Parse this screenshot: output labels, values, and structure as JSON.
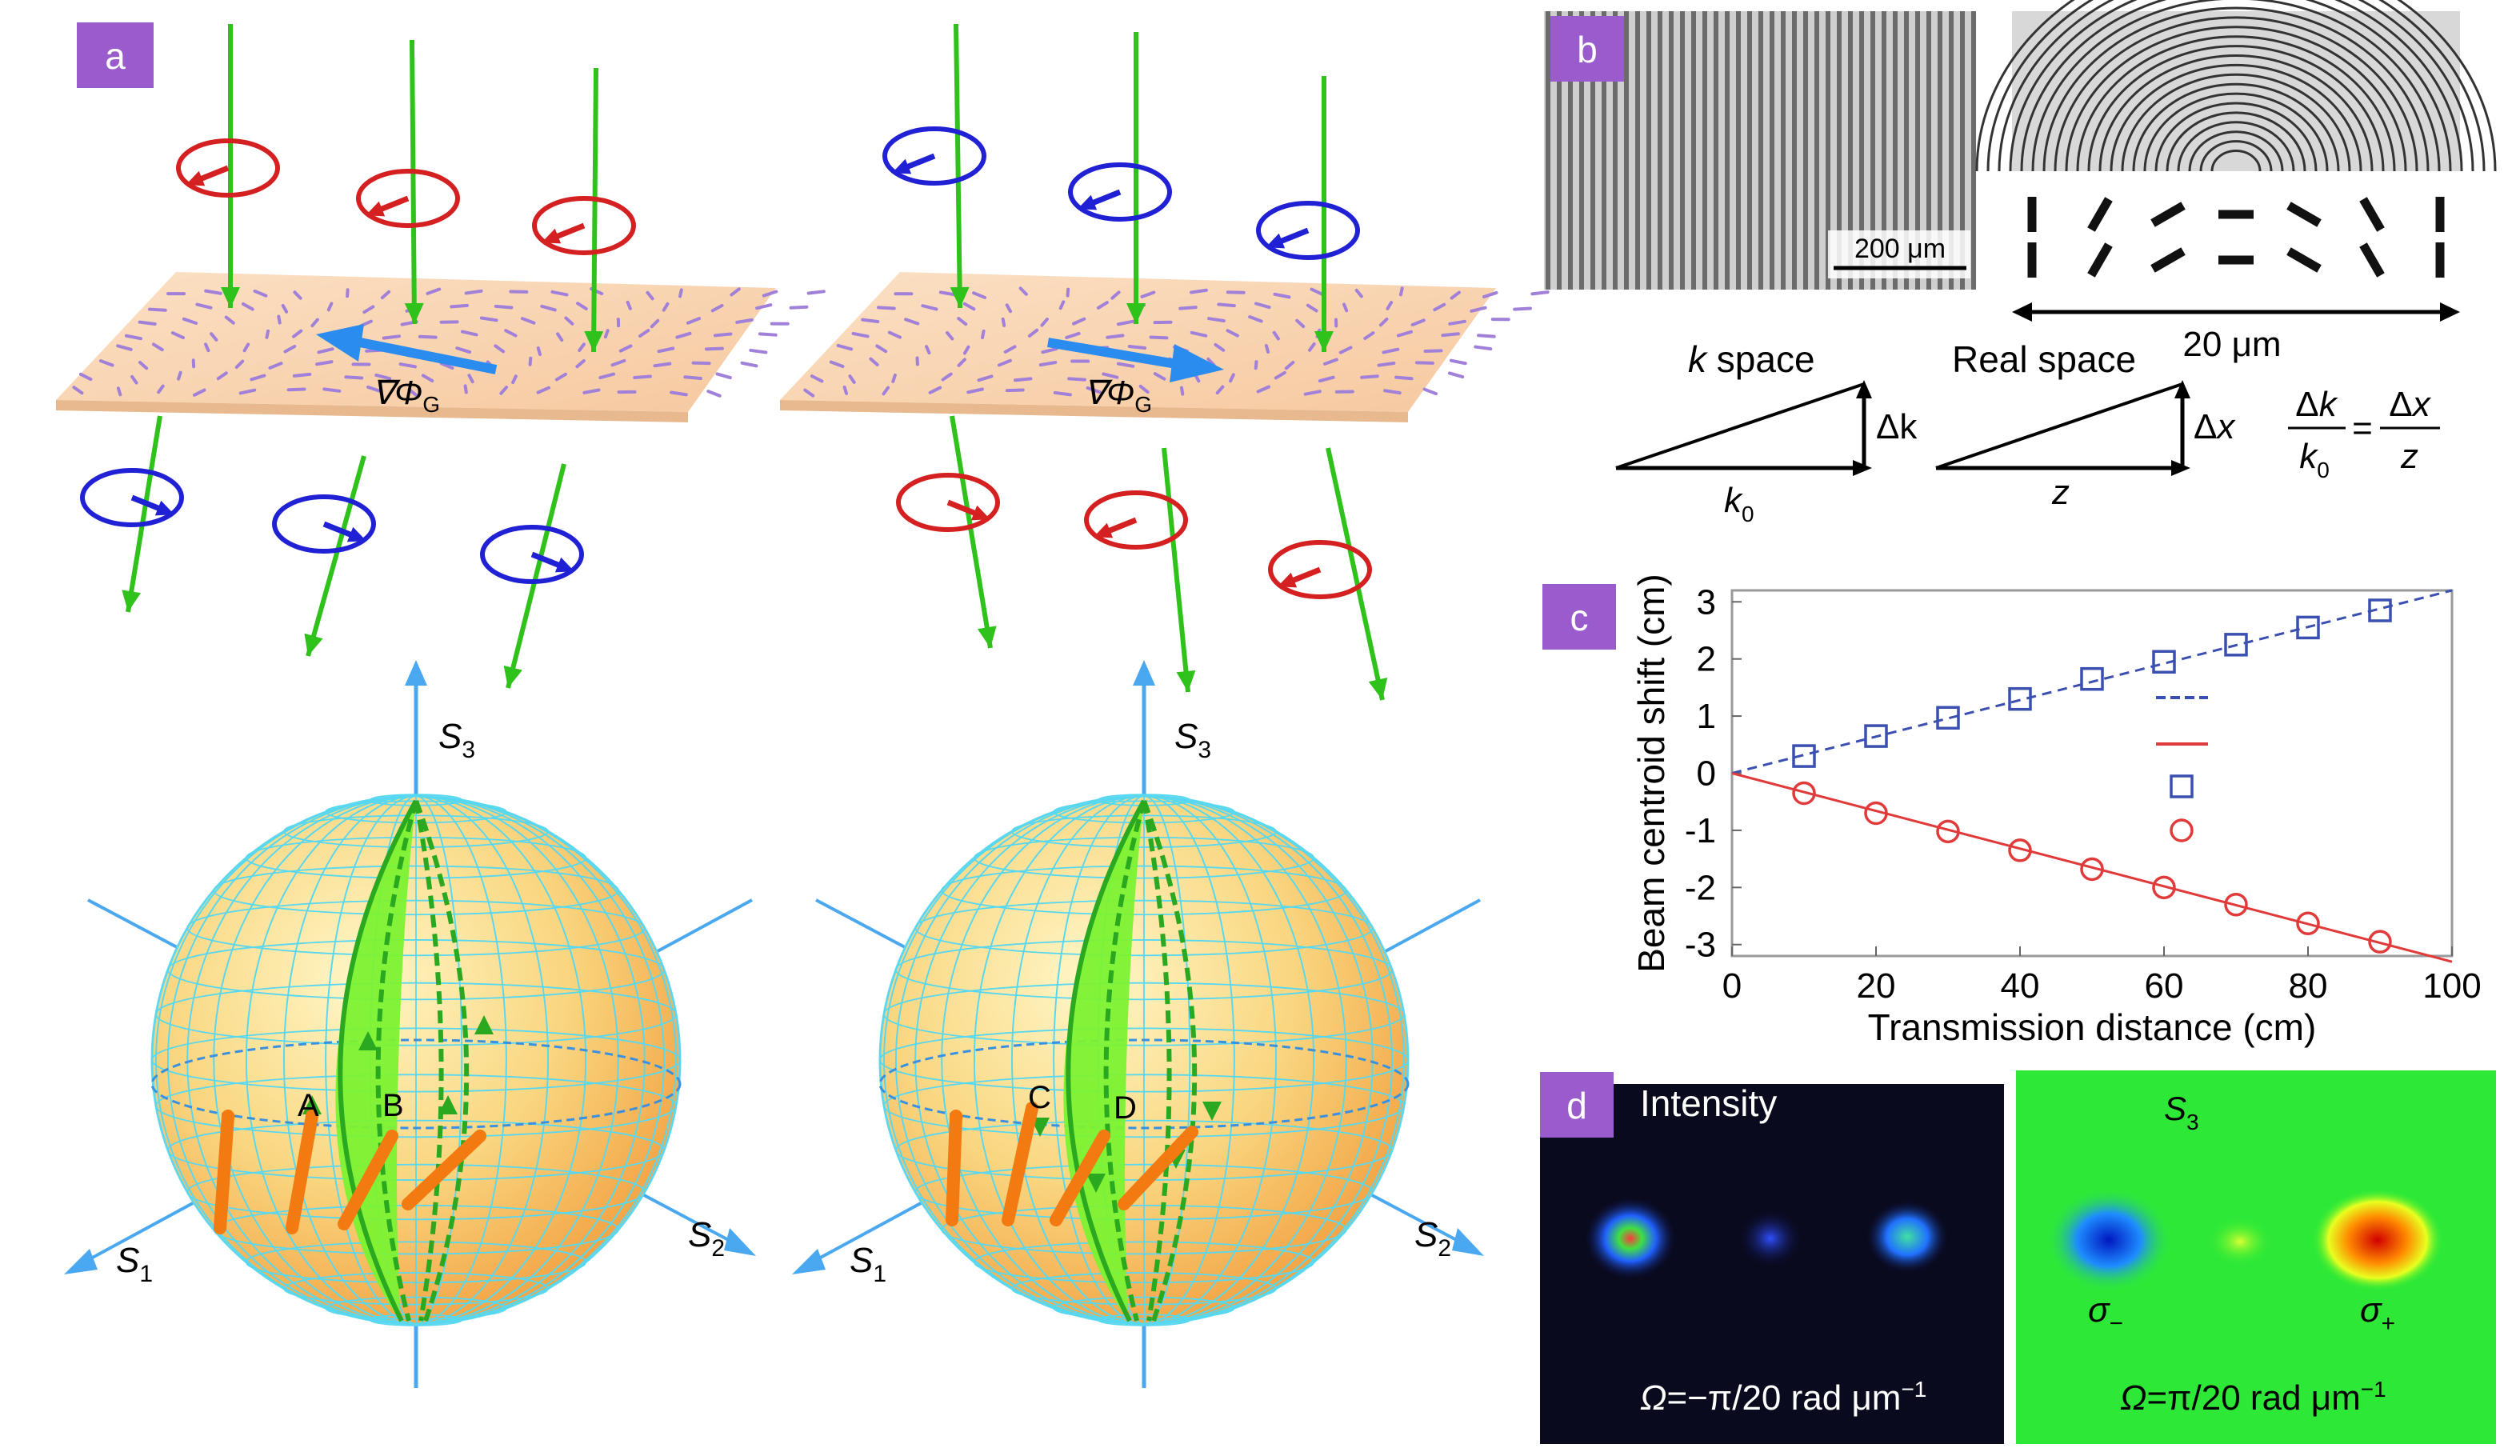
{
  "panels": {
    "a": "a",
    "b": "b",
    "c": "c",
    "d": "d"
  },
  "panel_a": {
    "grad_label": "∇Φ",
    "grad_sub": "G",
    "axes": {
      "s3": "S",
      "s3_sub": "3",
      "s1": "S",
      "s1_sub": "1",
      "s2": "S",
      "s2_sub": "2"
    },
    "points_left": [
      "A",
      "B"
    ],
    "points_right": [
      "C",
      "D"
    ]
  },
  "panel_b": {
    "scale_bar_left": "200 μm",
    "scale_bar_right": "20 μm",
    "k_space_title": "k space",
    "real_space_title": "Real space",
    "k_dk": "Δk",
    "k_k0": "k",
    "k_k0_sub": "0",
    "real_dx": "Δx",
    "real_z": "z",
    "eq_num_left": "Δk",
    "eq_den_left": "k",
    "eq_den_left_sub": "0",
    "eq_equals": "=",
    "eq_num_right": "Δx",
    "eq_den_right": "z"
  },
  "chart_data": {
    "type": "scatter",
    "xlabel": "Transmission distance (cm)",
    "ylabel": "Beam centroid shift (cm)",
    "xlim": [
      0,
      100
    ],
    "ylim": [
      -3.2,
      3.2
    ],
    "xticks": [
      0,
      20,
      40,
      60,
      80,
      100
    ],
    "yticks": [
      -3,
      -2,
      -1,
      0,
      1,
      2,
      3
    ],
    "series": [
      {
        "marker": "square",
        "color": "#3a4fb0",
        "line": "dashed",
        "x": [
          10,
          20,
          30,
          40,
          50,
          60,
          70,
          80,
          90
        ],
        "values": [
          0.3,
          0.65,
          0.97,
          1.3,
          1.65,
          1.95,
          2.25,
          2.55,
          2.85
        ],
        "fit": [
          [
            0,
            0
          ],
          [
            100,
            3.2
          ]
        ]
      },
      {
        "marker": "circle",
        "color": "#e03a3a",
        "line": "solid",
        "x": [
          10,
          20,
          30,
          40,
          50,
          60,
          70,
          80,
          90
        ],
        "values": [
          -0.35,
          -0.7,
          -1.02,
          -1.35,
          -1.68,
          -2.0,
          -2.3,
          -2.63,
          -2.95
        ],
        "fit": [
          [
            0,
            0
          ],
          [
            100,
            -3.3
          ]
        ]
      }
    ]
  },
  "panel_d": {
    "left_title": "Intensity",
    "left_caption": "Ω=−π/20 rad μm⁻¹",
    "right_title": "S",
    "right_title_sub": "3",
    "sigma_minus": "σ",
    "sigma_minus_sub": "−",
    "sigma_plus": "σ",
    "sigma_plus_sub": "+",
    "right_caption": "Ω=π/20 rad μm⁻¹"
  },
  "colors": {
    "badge": "#9a5ccc",
    "green_beam": "#2ec21a",
    "red_polar": "#d42020",
    "blue_polar": "#2020d4",
    "plate": "#f8d6b4",
    "axis_blue": "#4aa8f0"
  }
}
